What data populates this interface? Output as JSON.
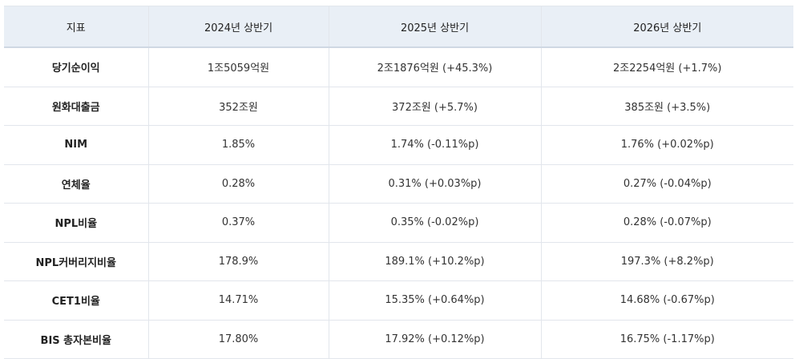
{
  "table": {
    "header": [
      "지표",
      "2024년 상반기",
      "2025년 상반기",
      "2026년 상반기"
    ],
    "rows": [
      [
        "당기순이익",
        "1조5059억원",
        "2조1876억원 (+45.3%)",
        "2조2254억원 (+1.7%)"
      ],
      [
        "원화대출금",
        "352조원",
        "372조원 (+5.7%)",
        "385조원 (+3.5%)"
      ],
      [
        "NIM",
        "1.85%",
        "1.74% (-0.11%p)",
        "1.76% (+0.02%p)"
      ],
      [
        "연체율",
        "0.28%",
        "0.31% (+0.03%p)",
        "0.27% (-0.04%p)"
      ],
      [
        "NPL비율",
        "0.37%",
        "0.35% (-0.02%p)",
        "0.28% (-0.07%p)"
      ],
      [
        "NPL커버리지비율",
        "178.9%",
        "189.1% (+10.2%p)",
        "197.3% (+8.2%p)"
      ],
      [
        "CET1비율",
        "14.71%",
        "15.35% (+0.64%p)",
        "14.68% (-0.67%p)"
      ],
      [
        "BIS 총자본비율",
        "17.80%",
        "17.92% (+0.12%p)",
        "16.75% (-1.17%p)"
      ]
    ]
  }
}
